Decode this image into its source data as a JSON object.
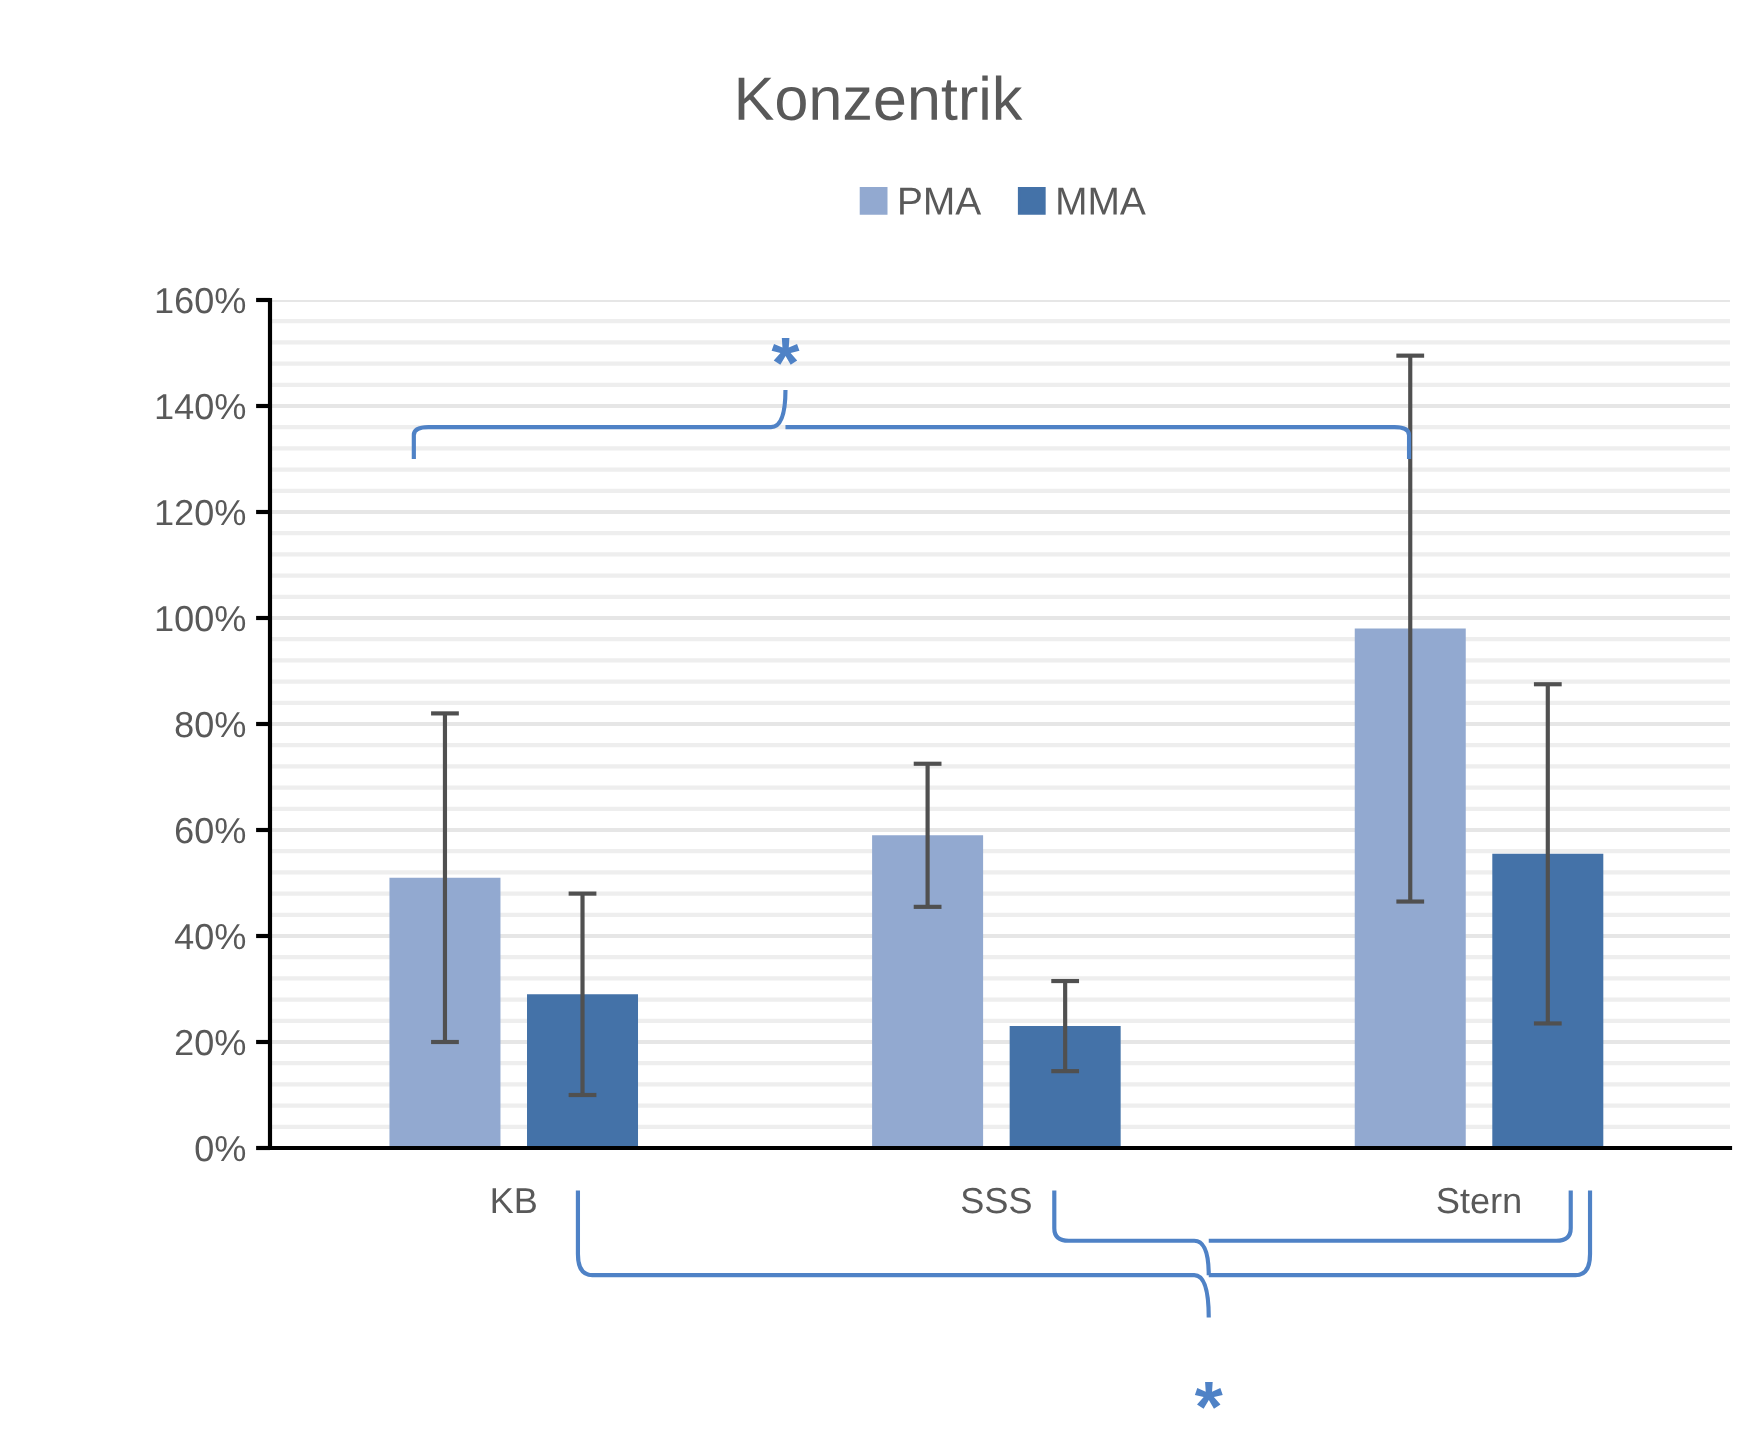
{
  "chart_data": {
    "type": "bar",
    "title": "Konzentrik",
    "categories": [
      "KB",
      "SSS",
      "Stern"
    ],
    "series": [
      {
        "name": "PMA",
        "color": "#92a9d0",
        "values": [
          51,
          59,
          98
        ],
        "errors": [
          31,
          13.5,
          51.5
        ]
      },
      {
        "name": "MMA",
        "color": "#4472a8",
        "values": [
          29,
          23,
          55.5
        ],
        "errors": [
          19,
          8.5,
          32
        ]
      }
    ],
    "ylim": [
      0,
      160
    ],
    "yticks": [
      {
        "value": 0,
        "label": "0%"
      },
      {
        "value": 20,
        "label": "20%"
      },
      {
        "value": 40,
        "label": "40%"
      },
      {
        "value": 60,
        "label": "60%"
      },
      {
        "value": 80,
        "label": "80%"
      },
      {
        "value": 100,
        "label": "100%"
      },
      {
        "value": 120,
        "label": "120%"
      },
      {
        "value": 140,
        "label": "140%"
      },
      {
        "value": 160,
        "label": "160%"
      }
    ],
    "grid": "y",
    "legend": "top",
    "annotations": [
      "*",
      "*"
    ]
  }
}
